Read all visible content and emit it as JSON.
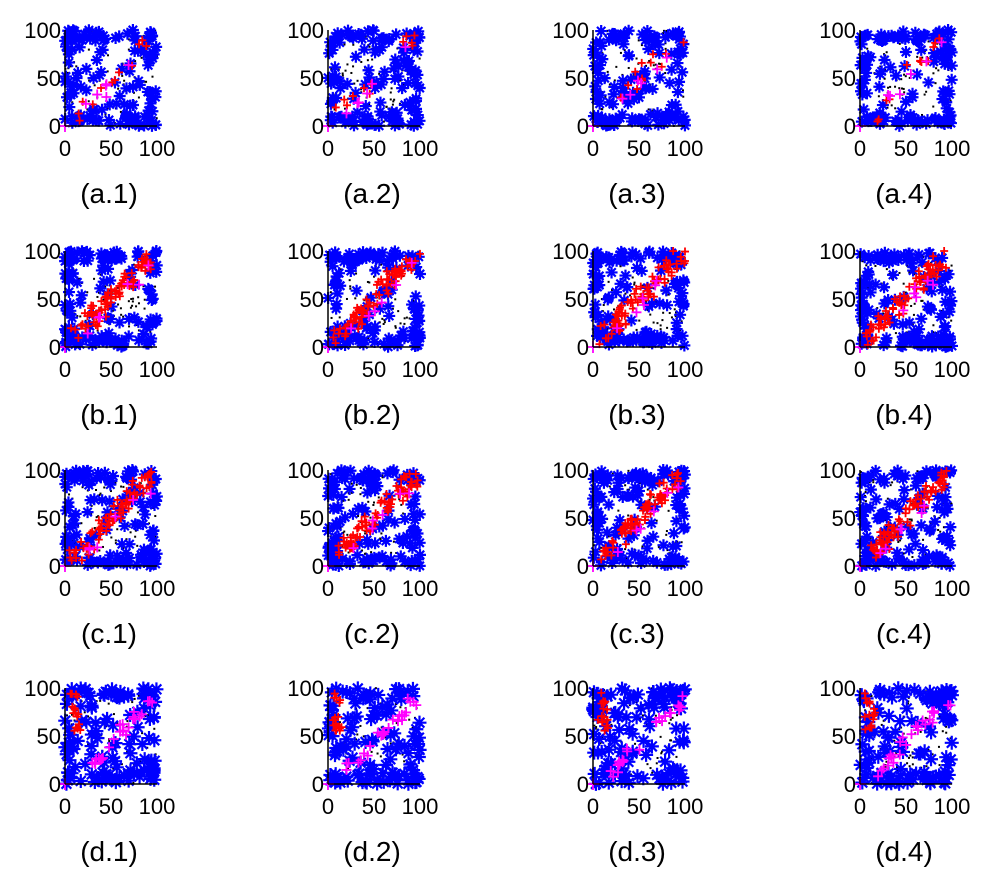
{
  "chart_data": [
    {
      "caption": "(a.1)",
      "type": "scatter",
      "xlim": [
        0,
        100
      ],
      "ylim": [
        0,
        100
      ],
      "xticks": [
        "0",
        "50",
        "100"
      ],
      "yticks": [
        "0",
        "50",
        "100"
      ],
      "grid": false,
      "series": [
        {
          "color": "#0000ff",
          "marker": "plus-star"
        },
        {
          "color": "#ff0000",
          "marker": "plus"
        },
        {
          "color": "#ff00ff",
          "marker": "plus"
        },
        {
          "color": "#000000",
          "marker": "dot"
        }
      ]
    },
    {
      "caption": "(a.2)",
      "type": "scatter",
      "xlim": [
        0,
        100
      ],
      "ylim": [
        0,
        100
      ],
      "xticks": [
        "0",
        "50",
        "100"
      ],
      "yticks": [
        "0",
        "50",
        "100"
      ],
      "grid": false,
      "series": [
        {
          "color": "#0000ff",
          "marker": "plus-star"
        },
        {
          "color": "#ff0000",
          "marker": "plus"
        },
        {
          "color": "#ff00ff",
          "marker": "plus"
        },
        {
          "color": "#000000",
          "marker": "dot"
        }
      ]
    },
    {
      "caption": "(a.3)",
      "type": "scatter",
      "xlim": [
        0,
        100
      ],
      "ylim": [
        0,
        100
      ],
      "xticks": [
        "0",
        "50",
        "100"
      ],
      "yticks": [
        "0",
        "50",
        "100"
      ],
      "grid": false,
      "series": [
        {
          "color": "#0000ff",
          "marker": "plus-star"
        },
        {
          "color": "#ff0000",
          "marker": "plus"
        },
        {
          "color": "#ff00ff",
          "marker": "plus"
        },
        {
          "color": "#000000",
          "marker": "dot"
        }
      ]
    },
    {
      "caption": "(a.4)",
      "type": "scatter",
      "xlim": [
        0,
        100
      ],
      "ylim": [
        0,
        100
      ],
      "xticks": [
        "0",
        "50",
        "100"
      ],
      "yticks": [
        "0",
        "50",
        "100"
      ],
      "grid": false,
      "series": [
        {
          "color": "#0000ff",
          "marker": "plus-star"
        },
        {
          "color": "#ff0000",
          "marker": "plus"
        },
        {
          "color": "#ff00ff",
          "marker": "plus"
        },
        {
          "color": "#000000",
          "marker": "dot"
        }
      ]
    },
    {
      "caption": "(b.1)",
      "type": "scatter",
      "xlim": [
        0,
        100
      ],
      "ylim": [
        0,
        100
      ],
      "xticks": [
        "0",
        "50",
        "100"
      ],
      "yticks": [
        "0",
        "50",
        "100"
      ],
      "grid": false,
      "series": [
        {
          "color": "#0000ff",
          "marker": "plus-star"
        },
        {
          "color": "#ff0000",
          "marker": "plus"
        },
        {
          "color": "#ff00ff",
          "marker": "plus"
        },
        {
          "color": "#000000",
          "marker": "dot"
        }
      ]
    },
    {
      "caption": "(b.2)",
      "type": "scatter",
      "xlim": [
        0,
        100
      ],
      "ylim": [
        0,
        100
      ],
      "xticks": [
        "0",
        "50",
        "100"
      ],
      "yticks": [
        "0",
        "50",
        "100"
      ],
      "grid": false,
      "series": [
        {
          "color": "#0000ff",
          "marker": "plus-star"
        },
        {
          "color": "#ff0000",
          "marker": "plus"
        },
        {
          "color": "#ff00ff",
          "marker": "plus"
        },
        {
          "color": "#000000",
          "marker": "dot"
        }
      ]
    },
    {
      "caption": "(b.3)",
      "type": "scatter",
      "xlim": [
        0,
        100
      ],
      "ylim": [
        0,
        100
      ],
      "xticks": [
        "0",
        "50",
        "100"
      ],
      "yticks": [
        "0",
        "50",
        "100"
      ],
      "grid": false,
      "series": [
        {
          "color": "#0000ff",
          "marker": "plus-star"
        },
        {
          "color": "#ff0000",
          "marker": "plus"
        },
        {
          "color": "#ff00ff",
          "marker": "plus"
        },
        {
          "color": "#000000",
          "marker": "dot"
        }
      ]
    },
    {
      "caption": "(b.4)",
      "type": "scatter",
      "xlim": [
        0,
        100
      ],
      "ylim": [
        0,
        100
      ],
      "xticks": [
        "0",
        "50",
        "100"
      ],
      "yticks": [
        "0",
        "50",
        "100"
      ],
      "grid": false,
      "series": [
        {
          "color": "#0000ff",
          "marker": "plus-star"
        },
        {
          "color": "#ff0000",
          "marker": "plus"
        },
        {
          "color": "#ff00ff",
          "marker": "plus"
        },
        {
          "color": "#000000",
          "marker": "dot"
        }
      ]
    },
    {
      "caption": "(c.1)",
      "type": "scatter",
      "xlim": [
        0,
        100
      ],
      "ylim": [
        0,
        100
      ],
      "xticks": [
        "0",
        "50",
        "100"
      ],
      "yticks": [
        "0",
        "50",
        "100"
      ],
      "grid": false,
      "series": [
        {
          "color": "#0000ff",
          "marker": "plus-star"
        },
        {
          "color": "#ff0000",
          "marker": "plus"
        },
        {
          "color": "#ff00ff",
          "marker": "plus"
        },
        {
          "color": "#000000",
          "marker": "dot"
        }
      ]
    },
    {
      "caption": "(c.2)",
      "type": "scatter",
      "xlim": [
        0,
        100
      ],
      "ylim": [
        0,
        100
      ],
      "xticks": [
        "0",
        "50",
        "100"
      ],
      "yticks": [
        "0",
        "50",
        "100"
      ],
      "grid": false,
      "series": [
        {
          "color": "#0000ff",
          "marker": "plus-star"
        },
        {
          "color": "#ff0000",
          "marker": "plus"
        },
        {
          "color": "#ff00ff",
          "marker": "plus"
        },
        {
          "color": "#000000",
          "marker": "dot"
        }
      ]
    },
    {
      "caption": "(c.3)",
      "type": "scatter",
      "xlim": [
        0,
        100
      ],
      "ylim": [
        0,
        100
      ],
      "xticks": [
        "0",
        "50",
        "100"
      ],
      "yticks": [
        "0",
        "50",
        "100"
      ],
      "grid": false,
      "series": [
        {
          "color": "#0000ff",
          "marker": "plus-star"
        },
        {
          "color": "#ff0000",
          "marker": "plus"
        },
        {
          "color": "#ff00ff",
          "marker": "plus"
        },
        {
          "color": "#000000",
          "marker": "dot"
        }
      ]
    },
    {
      "caption": "(c.4)",
      "type": "scatter",
      "xlim": [
        0,
        100
      ],
      "ylim": [
        0,
        100
      ],
      "xticks": [
        "0",
        "50",
        "100"
      ],
      "yticks": [
        "0",
        "50",
        "100"
      ],
      "grid": false,
      "series": [
        {
          "color": "#0000ff",
          "marker": "plus-star"
        },
        {
          "color": "#ff0000",
          "marker": "plus"
        },
        {
          "color": "#ff00ff",
          "marker": "plus"
        },
        {
          "color": "#000000",
          "marker": "dot"
        }
      ]
    },
    {
      "caption": "(d.1)",
      "type": "scatter",
      "xlim": [
        0,
        100
      ],
      "ylim": [
        0,
        100
      ],
      "xticks": [
        "0",
        "50",
        "100"
      ],
      "yticks": [
        "0",
        "50",
        "100"
      ],
      "grid": false,
      "series": [
        {
          "color": "#0000ff",
          "marker": "plus-star"
        },
        {
          "color": "#ff0000",
          "marker": "plus"
        },
        {
          "color": "#ff00ff",
          "marker": "plus"
        },
        {
          "color": "#000000",
          "marker": "dot"
        }
      ]
    },
    {
      "caption": "(d.2)",
      "type": "scatter",
      "xlim": [
        0,
        100
      ],
      "ylim": [
        0,
        100
      ],
      "xticks": [
        "0",
        "50",
        "100"
      ],
      "yticks": [
        "0",
        "50",
        "100"
      ],
      "grid": false,
      "series": [
        {
          "color": "#0000ff",
          "marker": "plus-star"
        },
        {
          "color": "#ff0000",
          "marker": "plus"
        },
        {
          "color": "#ff00ff",
          "marker": "plus"
        },
        {
          "color": "#000000",
          "marker": "dot"
        }
      ]
    },
    {
      "caption": "(d.3)",
      "type": "scatter",
      "xlim": [
        0,
        100
      ],
      "ylim": [
        0,
        100
      ],
      "xticks": [
        "0",
        "50",
        "100"
      ],
      "yticks": [
        "0",
        "50",
        "100"
      ],
      "grid": false,
      "series": [
        {
          "color": "#0000ff",
          "marker": "plus-star"
        },
        {
          "color": "#ff0000",
          "marker": "plus"
        },
        {
          "color": "#ff00ff",
          "marker": "plus"
        },
        {
          "color": "#000000",
          "marker": "dot"
        }
      ]
    },
    {
      "caption": "(d.4)",
      "type": "scatter",
      "xlim": [
        0,
        100
      ],
      "ylim": [
        0,
        100
      ],
      "xticks": [
        "0",
        "50",
        "100"
      ],
      "yticks": [
        "0",
        "50",
        "100"
      ],
      "grid": false,
      "series": [
        {
          "color": "#0000ff",
          "marker": "plus-star"
        },
        {
          "color": "#ff0000",
          "marker": "plus"
        },
        {
          "color": "#ff00ff",
          "marker": "plus"
        },
        {
          "color": "#000000",
          "marker": "dot"
        }
      ]
    }
  ]
}
